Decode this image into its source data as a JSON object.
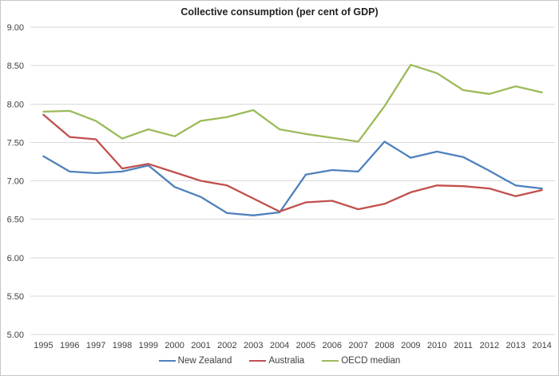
{
  "chart": {
    "title": "Collective consumption (per cent of GDP)"
  },
  "chart_data": {
    "type": "line",
    "title": "Collective consumption (per cent of GDP)",
    "x": [
      "1995",
      "1996",
      "1997",
      "1998",
      "1999",
      "2000",
      "2001",
      "2002",
      "2003",
      "2004",
      "2005",
      "2006",
      "2007",
      "2008",
      "2009",
      "2010",
      "2011",
      "2012",
      "2013",
      "2014"
    ],
    "series": [
      {
        "name": "New Zealand",
        "color": "#4F81BD",
        "values": [
          7.32,
          7.12,
          7.1,
          7.12,
          7.2,
          6.92,
          6.79,
          6.58,
          6.55,
          6.59,
          7.08,
          7.14,
          7.12,
          7.51,
          7.3,
          7.38,
          7.31,
          7.13,
          6.94,
          6.9
        ]
      },
      {
        "name": "Australia",
        "color": "#C0504D",
        "values": [
          7.86,
          7.57,
          7.54,
          7.16,
          7.22,
          7.11,
          7.0,
          6.94,
          6.77,
          6.6,
          6.72,
          6.74,
          6.63,
          6.7,
          6.85,
          6.94,
          6.93,
          6.9,
          6.8,
          6.88
        ]
      },
      {
        "name": "OECD median",
        "color": "#9BBB59",
        "values": [
          7.9,
          7.91,
          7.78,
          7.55,
          7.67,
          7.58,
          7.78,
          7.83,
          7.92,
          7.67,
          7.61,
          7.56,
          7.51,
          7.97,
          8.51,
          8.4,
          8.18,
          8.13,
          8.23,
          8.15
        ]
      }
    ],
    "ylim": [
      5.0,
      9.0
    ],
    "ytick_step": 0.5,
    "ytick_labels": [
      "9.00",
      "8.50",
      "8.00",
      "7.50",
      "7.00",
      "6.50",
      "6.00",
      "5.50",
      "5.00"
    ],
    "xlabel": "",
    "ylabel": "",
    "grid": true,
    "gridline_color": "#D9D9D9",
    "legend_position": "bottom",
    "text_color": "#404040"
  }
}
